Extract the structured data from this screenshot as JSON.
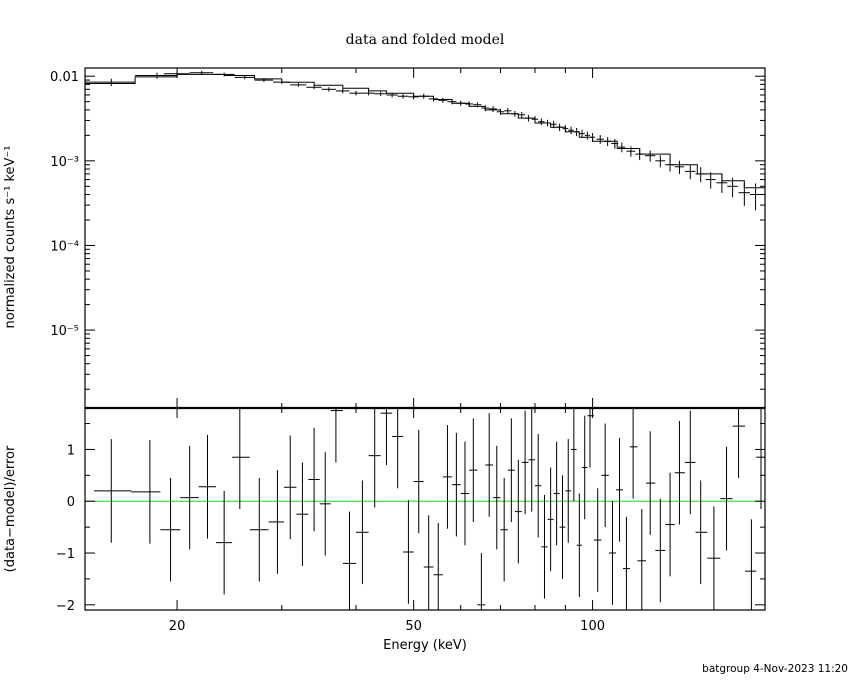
{
  "chart_data": [
    {
      "type": "line",
      "panel": "top",
      "title": "data and folded model",
      "ylabel": "normalized counts s⁻¹ keV⁻¹",
      "xlabel": "",
      "xscale": "log",
      "yscale": "log",
      "xlim": [
        14,
        195
      ],
      "ylim": [
        1.2e-06,
        0.0125
      ],
      "y_ticks": [
        {
          "value": 0.01,
          "label": "0.01"
        },
        {
          "value": 0.001,
          "label": "10⁻³"
        },
        {
          "value": 0.0001,
          "label": "10⁻⁴"
        },
        {
          "value": 1e-05,
          "label": "10⁻⁵"
        }
      ],
      "series": [
        {
          "role": "model",
          "color": "#000000",
          "edges": [
            14,
            17,
            20,
            24,
            27,
            30,
            34,
            38,
            42,
            45,
            50,
            54,
            58,
            62,
            66,
            70,
            75,
            80,
            85,
            90,
            95,
            100,
            110,
            120,
            135,
            150,
            165,
            180,
            195
          ],
          "values": [
            0.0082,
            0.0098,
            0.0105,
            0.0102,
            0.0093,
            0.0085,
            0.0078,
            0.0072,
            0.0067,
            0.0063,
            0.0058,
            0.0053,
            0.0048,
            0.0044,
            0.004,
            0.0036,
            0.0032,
            0.0028,
            0.0025,
            0.0022,
            0.0019,
            0.0017,
            0.0014,
            0.0012,
            0.0009,
            0.0007,
            0.00058,
            0.00048
          ]
        },
        {
          "role": "data",
          "color": "#000000",
          "x": [
            15.5,
            18.5,
            20.0,
            22.0,
            24.0,
            26.0,
            28.0,
            30.0,
            32.0,
            34.0,
            36.0,
            38.0,
            40.0,
            42.0,
            44.0,
            46.0,
            48.0,
            50.0,
            52.0,
            54.0,
            56.0,
            58.0,
            60.0,
            62.0,
            64.0,
            66.0,
            68.0,
            70.0,
            72.0,
            74.0,
            76.0,
            78.0,
            80.0,
            82.0,
            84.0,
            86.0,
            88.0,
            90.0,
            92.0,
            94.0,
            96.0,
            98.0,
            100.0,
            103.0,
            106.0,
            109.0,
            112.0,
            116.0,
            120.0,
            125.0,
            130.0,
            135.0,
            140.0,
            146.0,
            152.0,
            158.0,
            165.0,
            172.0,
            180.0,
            188.0
          ],
          "y": [
            0.0085,
            0.0102,
            0.0107,
            0.011,
            0.0105,
            0.0097,
            0.009,
            0.0085,
            0.0079,
            0.0074,
            0.007,
            0.0067,
            0.0063,
            0.0063,
            0.0062,
            0.006,
            0.0058,
            0.0057,
            0.0058,
            0.0054,
            0.0052,
            0.005,
            0.0048,
            0.0047,
            0.0046,
            0.0042,
            0.0041,
            0.0038,
            0.0039,
            0.0036,
            0.0035,
            0.0032,
            0.0031,
            0.0029,
            0.0028,
            0.0027,
            0.0025,
            0.0024,
            0.0023,
            0.0022,
            0.0021,
            0.002,
            0.0019,
            0.0018,
            0.0017,
            0.0016,
            0.00145,
            0.0013,
            0.0012,
            0.00115,
            0.001,
            0.0009,
            0.00085,
            0.00075,
            0.0007,
            0.0006,
            0.00055,
            0.0005,
            0.00042,
            0.0004
          ],
          "xerr": [
            1.5,
            1.5,
            1.0,
            1.0,
            1.0,
            1.0,
            1.0,
            1.0,
            1.0,
            1.0,
            1.0,
            1.0,
            1.0,
            1.0,
            1.0,
            1.0,
            1.0,
            1.0,
            1.0,
            1.0,
            1.0,
            1.0,
            1.0,
            1.0,
            1.0,
            1.0,
            1.0,
            1.0,
            1.0,
            1.0,
            1.0,
            1.0,
            1.0,
            1.0,
            1.0,
            1.0,
            1.0,
            1.0,
            1.0,
            1.0,
            1.0,
            1.0,
            1.0,
            1.5,
            1.5,
            1.5,
            1.5,
            2.0,
            2.0,
            2.5,
            2.5,
            2.5,
            2.5,
            3.0,
            3.0,
            3.0,
            3.5,
            3.5,
            4.0,
            4.0
          ],
          "yerr_frac": [
            0.1,
            0.08,
            0.06,
            0.05,
            0.05,
            0.05,
            0.05,
            0.05,
            0.05,
            0.05,
            0.06,
            0.06,
            0.06,
            0.06,
            0.06,
            0.06,
            0.06,
            0.07,
            0.07,
            0.07,
            0.07,
            0.07,
            0.07,
            0.07,
            0.07,
            0.08,
            0.08,
            0.08,
            0.08,
            0.08,
            0.08,
            0.09,
            0.09,
            0.09,
            0.09,
            0.1,
            0.1,
            0.1,
            0.1,
            0.11,
            0.11,
            0.11,
            0.12,
            0.12,
            0.12,
            0.13,
            0.13,
            0.14,
            0.15,
            0.15,
            0.16,
            0.17,
            0.18,
            0.19,
            0.2,
            0.22,
            0.24,
            0.26,
            0.3,
            0.35
          ]
        }
      ]
    },
    {
      "type": "scatter",
      "panel": "bottom",
      "xlabel": "Energy (keV)",
      "ylabel": "(data−model)/error",
      "xscale": "log",
      "xlim": [
        14,
        195
      ],
      "ylim": [
        -2.1,
        1.8
      ],
      "x_ticks": [
        {
          "value": 20,
          "label": "20"
        },
        {
          "value": 50,
          "label": "50"
        },
        {
          "value": 100,
          "label": "100"
        }
      ],
      "y_ticks": [
        {
          "value": 1,
          "label": "1"
        },
        {
          "value": 0,
          "label": "0"
        },
        {
          "value": -1,
          "label": "−1"
        },
        {
          "value": -2,
          "label": "−2"
        }
      ],
      "zero_line_color": "#44dd44",
      "series": [
        {
          "role": "residuals",
          "color": "#000000",
          "x": [
            15.5,
            18.0,
            19.5,
            21.0,
            22.5,
            24.0,
            25.5,
            27.5,
            29.5,
            31.0,
            32.5,
            34.0,
            35.5,
            37.0,
            39.0,
            41.0,
            43.0,
            45.0,
            47.0,
            49.0,
            51.0,
            53.0,
            55.0,
            57.0,
            59.0,
            61.0,
            63.0,
            65.0,
            67.0,
            69.0,
            71.0,
            73.0,
            75.0,
            77.0,
            79.0,
            81.0,
            83.0,
            85.0,
            87.0,
            89.0,
            91.0,
            93.0,
            95.0,
            97.0,
            99.0,
            102.0,
            105.0,
            108.0,
            111.0,
            114.0,
            117.0,
            121.0,
            125.0,
            130.0,
            135.0,
            140.0,
            146.0,
            152.0,
            160.0,
            168.0,
            176.0,
            185.0,
            192.0
          ],
          "y": [
            0.2,
            0.18,
            -0.55,
            0.07,
            0.28,
            -0.8,
            0.85,
            -0.55,
            -0.4,
            0.27,
            -0.25,
            0.42,
            -0.05,
            1.75,
            -1.2,
            -0.6,
            0.88,
            1.7,
            1.25,
            -0.98,
            0.38,
            -1.27,
            -1.42,
            0.47,
            0.32,
            0.15,
            0.6,
            -2.0,
            0.7,
            0.07,
            -0.55,
            0.6,
            -0.2,
            0.75,
            0.8,
            0.3,
            -0.88,
            -0.35,
            0.15,
            -0.5,
            0.2,
            1.0,
            -0.85,
            0.65,
            1.65,
            -0.75,
            0.5,
            -1.0,
            0.22,
            -1.3,
            1.05,
            -1.15,
            0.35,
            -0.95,
            -0.45,
            0.55,
            0.75,
            -0.6,
            -1.1,
            0.05,
            1.45,
            -1.35,
            0.85
          ],
          "yerr": [
            1,
            1,
            1,
            1,
            1,
            1,
            1,
            1,
            1,
            1,
            1,
            1,
            1,
            1,
            1,
            1,
            1,
            1,
            1,
            1,
            1,
            1,
            1,
            1,
            1,
            1,
            1,
            1,
            1,
            1,
            1,
            1,
            1,
            1,
            1,
            1,
            1,
            1,
            1,
            1,
            1,
            1,
            1,
            1,
            1,
            1,
            1,
            1,
            1,
            1,
            1,
            1,
            1,
            1,
            1,
            1,
            1,
            1,
            1,
            1,
            1,
            1,
            1
          ]
        }
      ]
    }
  ],
  "footer": {
    "text": "batgroup  4-Nov-2023 11:20"
  }
}
